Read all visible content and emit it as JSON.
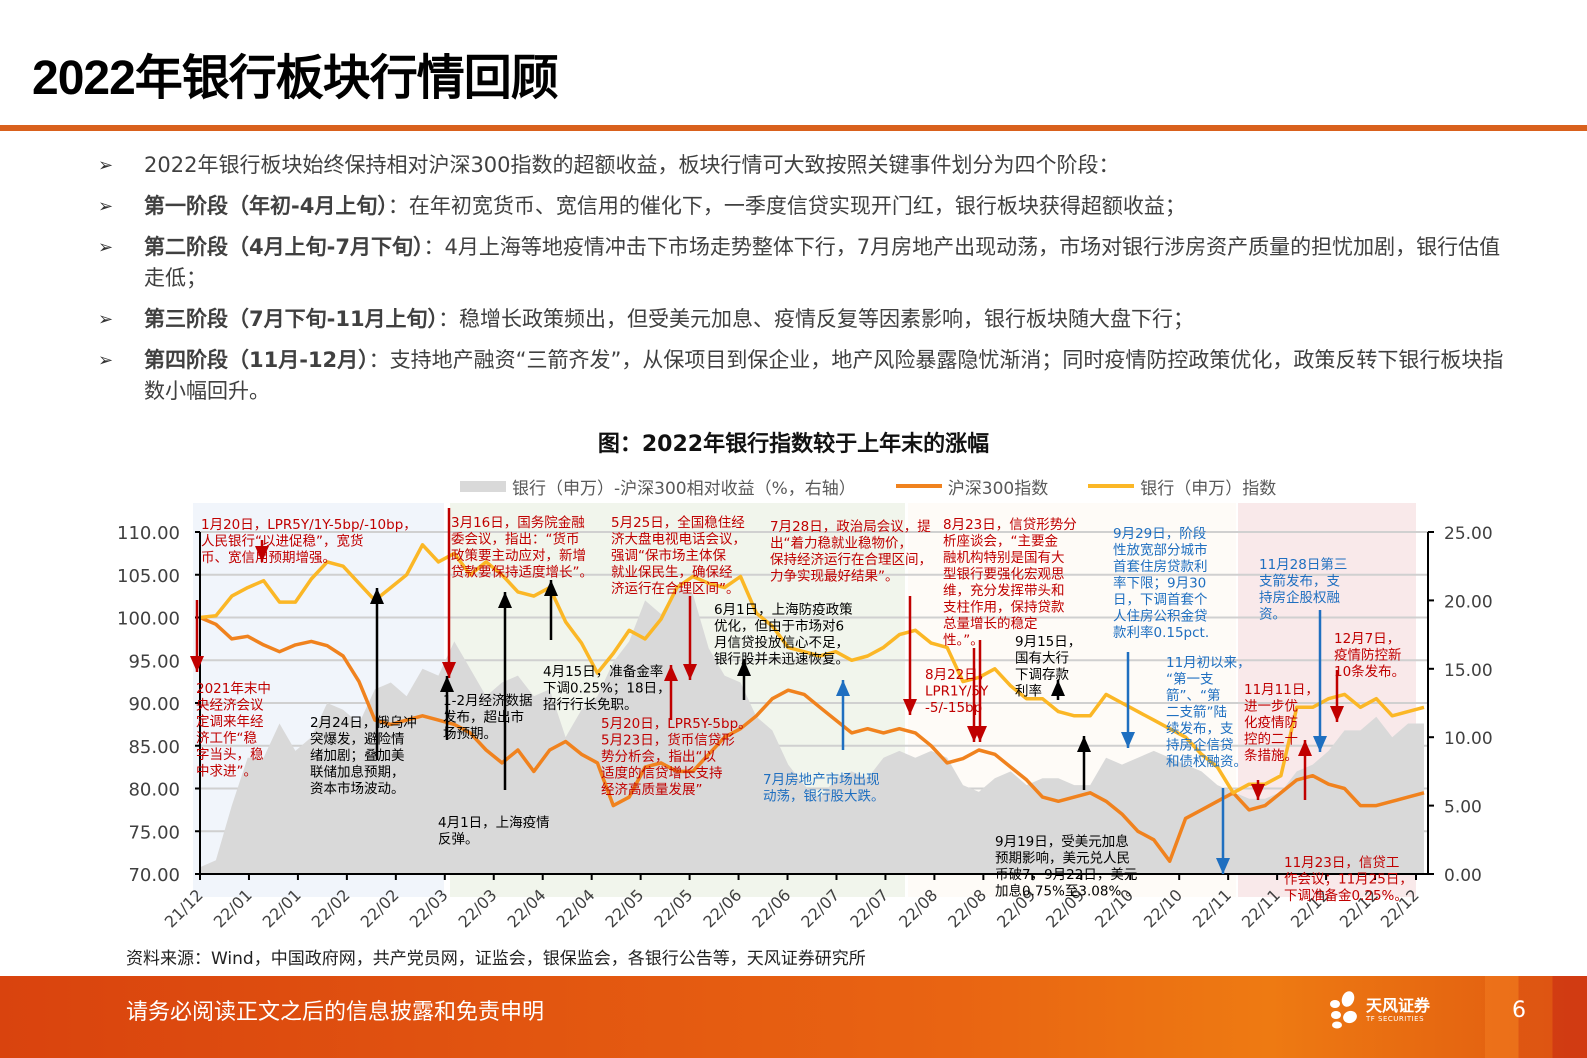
{
  "page": {
    "title": "2022年银行板块行情回顾",
    "page_number": "6"
  },
  "bullets": [
    {
      "bold": "",
      "text": "2022年银行板块始终保持相对沪深300指数的超额收益，板块行情可大致按照关键事件划分为四个阶段："
    },
    {
      "bold": "第一阶段（年初-4月上旬）",
      "text": "：在年初宽货币、宽信用的催化下，一季度信贷实现开门红，银行板块获得超额收益；"
    },
    {
      "bold": "第二阶段（4月上旬-7月下旬）",
      "text": "：4月上海等地疫情冲击下市场走势整体下行，7月房地产出现动荡，市场对银行涉房资产质量的担忧加剧，银行估值走低；"
    },
    {
      "bold": "第三阶段（7月下旬-11月上旬）",
      "text": "：稳增长政策频出，但受美元加息、疫情反复等因素影响，银行板块随大盘下行；"
    },
    {
      "bold": "第四阶段（11月-12月）",
      "text": "：支持地产融资“三箭齐发”，从保项目到保企业，地产风险暴露隐忧渐消；同时疫情防控政策优化，政策反转下银行板块指数小幅回升。"
    }
  ],
  "chart_data": {
    "type": "line",
    "title": "图：2022年银行指数较于上年末的涨幅",
    "legend": [
      "银行（申万）-沪深300相对收益（%，右轴）",
      "沪深300指数",
      "银行（申万）指数"
    ],
    "legend_position": "top",
    "colors": {
      "relative": "#d9d9d9",
      "hs300": "#f0821e",
      "bank": "#fbb726"
    },
    "x_ticks": [
      "21/12",
      "22/01",
      "22/01",
      "22/02",
      "22/02",
      "22/03",
      "22/03",
      "22/04",
      "22/04",
      "22/05",
      "22/05",
      "22/06",
      "22/06",
      "22/07",
      "22/07",
      "22/08",
      "22/08",
      "22/09",
      "22/09",
      "22/10",
      "22/10",
      "22/11",
      "22/11",
      "22/12",
      "22/12",
      "22/12"
    ],
    "y_left": {
      "ticks": [
        "70.00",
        "75.00",
        "80.00",
        "85.00",
        "90.00",
        "95.00",
        "100.00",
        "105.00",
        "110.00"
      ],
      "range": [
        70,
        110
      ]
    },
    "y_right": {
      "ticks": [
        "0.00",
        "5.00",
        "10.00",
        "15.00",
        "20.00",
        "25.00"
      ],
      "range": [
        0,
        25
      ]
    },
    "grid": true,
    "series": [
      {
        "name": "银行（申万）指数",
        "axis": "left",
        "values": [
          100.0,
          100.2,
          102.5,
          103.5,
          104.3,
          101.8,
          101.8,
          104.5,
          106.5,
          106.0,
          104.0,
          102.0,
          103.5,
          105.0,
          108.5,
          106.5,
          107.5,
          105.0,
          106.5,
          105.0,
          103.0,
          102.5,
          103.5,
          99.5,
          97.0,
          93.5,
          95.8,
          98.5,
          97.5,
          99.8,
          103.5,
          104.8,
          104.0,
          103.5,
          104.8,
          100.5,
          99.0,
          96.5,
          96.0,
          95.5,
          96.0,
          95.0,
          95.5,
          96.5,
          98.0,
          98.5,
          97.0,
          96.5,
          92.5,
          93.0,
          94.0,
          92.0,
          90.5,
          90.5,
          89.0,
          88.5,
          88.5,
          91.0,
          90.0,
          89.0,
          88.0,
          87.0,
          86.0,
          84.0,
          82.5,
          79.5,
          80.5,
          80.5,
          81.5,
          89.5,
          89.5,
          90.5,
          91.0,
          89.5,
          90.5,
          88.5,
          89.0,
          89.5
        ]
      },
      {
        "name": "沪深300指数",
        "axis": "left",
        "values": [
          100.0,
          99.2,
          97.5,
          97.8,
          96.8,
          96.0,
          96.8,
          97.2,
          96.7,
          95.5,
          92.5,
          88.0,
          87.5,
          88.0,
          88.5,
          88.0,
          87.5,
          86.5,
          84.5,
          83.0,
          84.5,
          82.0,
          84.5,
          85.5,
          84.0,
          83.0,
          78.0,
          79.0,
          82.5,
          83.0,
          82.0,
          82.0,
          84.0,
          86.0,
          87.0,
          88.5,
          90.5,
          91.5,
          91.0,
          89.5,
          88.0,
          86.5,
          87.0,
          86.5,
          87.0,
          86.5,
          85.0,
          83.0,
          83.5,
          84.5,
          84.0,
          82.5,
          81.0,
          79.0,
          78.5,
          79.0,
          79.5,
          78.5,
          77.0,
          75.0,
          74.0,
          71.5,
          76.5,
          77.5,
          78.5,
          79.5,
          77.5,
          78.0,
          79.5,
          81.0,
          81.5,
          80.5,
          80.0,
          78.0,
          78.0,
          78.5,
          79.0,
          79.5
        ]
      },
      {
        "name": "银行（申万）-沪深300相对收益（%，右轴）",
        "axis": "right",
        "type": "area",
        "values": [
          0.5,
          1.0,
          5.0,
          8.5,
          8.5,
          11.0,
          9.0,
          10.0,
          12.5,
          12.0,
          11.0,
          13.5,
          14.0,
          13.0,
          15.0,
          14.5,
          17.0,
          15.0,
          13.0,
          14.0,
          14.5,
          13.0,
          13.5,
          10.0,
          12.0,
          13.0,
          15.5,
          17.0,
          20.0,
          19.0,
          21.0,
          20.5,
          16.5,
          14.5,
          14.0,
          11.5,
          10.5,
          8.0,
          6.5,
          5.5,
          7.0,
          7.5,
          7.0,
          8.5,
          9.0,
          8.5,
          9.0,
          8.5,
          6.5,
          6.0,
          7.0,
          7.5,
          6.5,
          7.0,
          7.0,
          6.5,
          6.5,
          8.5,
          8.0,
          8.5,
          9.0,
          8.5,
          8.0,
          7.5,
          6.5,
          6.0,
          5.5,
          5.5,
          6.0,
          7.5,
          8.0,
          9.0,
          10.5,
          10.5,
          11.5,
          10.0,
          11.0,
          11.0
        ]
      }
    ],
    "phases": [
      {
        "name": "第一阶段",
        "color": "#f1f5fb",
        "from_tick": 0,
        "to_tick": 5
      },
      {
        "name": "第二阶段",
        "color": "#f1f5ec",
        "from_tick": 6,
        "to_tick": 14
      },
      {
        "name": "第三阶段",
        "color": "#fefbf7",
        "from_tick": 15,
        "to_tick": 21
      },
      {
        "name": "第四阶段",
        "color": "#f9e9ea",
        "from_tick": 22,
        "to_tick": 25
      }
    ],
    "annotations": [
      {
        "id": "a1",
        "color": "red",
        "text": [
          "1月20日，LPR5Y/1Y-5bp/-10bp，",
          "人民银行“以进促稳”，宽货",
          "币、宽信用预期增强。"
        ]
      },
      {
        "id": "a2",
        "color": "red",
        "text": [
          "2021年末中",
          "央经济会议",
          "定调来年经",
          "济工作“稳",
          "字当头，稳",
          "中求进”。"
        ]
      },
      {
        "id": "a3",
        "color": "black",
        "text": [
          "2月24日，俄乌冲",
          "突爆发，避险情",
          "绪加剧；叠加美",
          "联储加息预期，",
          "资本市场波动。"
        ]
      },
      {
        "id": "a4",
        "color": "red",
        "text": [
          "3月16日，国务院金融",
          "委会议，指出：“货币",
          "政策要主动应对，新增",
          "贷款要保持适度增长”。"
        ]
      },
      {
        "id": "a5",
        "color": "black",
        "text": [
          "1-2月经济数据",
          "发布，超出市",
          "场预期。"
        ]
      },
      {
        "id": "a6",
        "color": "black",
        "text": [
          "4月1日，上海疫情",
          "反弹。"
        ]
      },
      {
        "id": "a7",
        "color": "black",
        "text": [
          "4月15日，准备金率",
          "下调0.25%；18日，",
          "招行行长免职。"
        ]
      },
      {
        "id": "a8",
        "color": "red",
        "text": [
          "5月25日，全国稳住经",
          "济大盘电视电话会议，",
          "强调“保市场主体保",
          "就业保民生，确保经",
          "济运行在合理区间”。"
        ]
      },
      {
        "id": "a9",
        "color": "red",
        "text": [
          "5月20日，LPR5Y-5bp。",
          "5月23日，货币信贷形",
          "势分析会，指出“以",
          "适度的信贷增长支持",
          "经济高质量发展”"
        ]
      },
      {
        "id": "a10",
        "color": "black",
        "text": [
          "6月1日，上海防疫政策",
          "优化，但由于市场对6",
          "月信贷投放信心不足，",
          "银行股并未迅速恢复。"
        ]
      },
      {
        "id": "a11",
        "color": "blue",
        "text": [
          "7月房地产市场出现",
          "动荡，银行股大跌。"
        ]
      },
      {
        "id": "a12",
        "color": "red",
        "text": [
          "7月28日，政治局会议，提",
          "出“着力稳就业稳物价，",
          "保持经济运行在合理区间，",
          "力争实现最好结果”。"
        ]
      },
      {
        "id": "a13",
        "color": "red",
        "text": [
          "8月23日，信贷形势分",
          "析座谈会，“主要金",
          "融机构特别是国有大",
          "型银行要强化宏观思",
          "维，充分发挥带头和",
          "支柱作用，保持贷款",
          "总量增长的稳定",
          "性。”。"
        ]
      },
      {
        "id": "a14",
        "color": "red",
        "text": [
          "8月22日，",
          "LPR1Y/5Y",
          "-5/-15bp"
        ]
      },
      {
        "id": "a15",
        "color": "black",
        "text": [
          "9月15日，",
          "国有大行",
          "下调存款",
          "利率"
        ]
      },
      {
        "id": "a16",
        "color": "black",
        "text": [
          "9月19日，受美元加息",
          "预期影响，美元兑人民",
          "币破7，9月22日，美元",
          "加息0.75%至3.08% 。"
        ]
      },
      {
        "id": "a17",
        "color": "blue",
        "text": [
          "9月29日，阶段",
          "性放宽部分城市",
          "首套住房贷款利",
          "率下限；9月30",
          "日，下调首套个",
          "人住房公积金贷",
          "款利率0.15pct."
        ]
      },
      {
        "id": "a18",
        "color": "blue",
        "text": [
          "11月初以来，",
          "“第一支",
          "箭”、“第",
          "二支箭”陆",
          "续发布，支",
          "持房企信贷",
          "和债权融资。"
        ]
      },
      {
        "id": "a19",
        "color": "red",
        "text": [
          "11月11日，",
          "进一步优",
          "化疫情防",
          "控的二十",
          "条措施。"
        ]
      },
      {
        "id": "a20",
        "color": "blue",
        "text": [
          "11月28日第三",
          "支箭发布，支",
          "持房企股权融",
          "资。"
        ]
      },
      {
        "id": "a21",
        "color": "red",
        "text": [
          "12月7日，",
          "疫情防控新",
          "10条发布。"
        ]
      },
      {
        "id": "a22",
        "color": "red",
        "text": [
          "11月23日，信贷工",
          "作会议；11月25日，",
          "下调准备金0.25%。"
        ]
      }
    ]
  },
  "footer": {
    "source": "资料来源：Wind，中国政府网，共产党员网，证监会，银保监会，各银行公告等，天风证券研究所",
    "disclaimer": "请务必阅读正文之后的信息披露和免责申明",
    "brand_cn": "天风证券",
    "brand_en": "TF SECURITIES"
  }
}
